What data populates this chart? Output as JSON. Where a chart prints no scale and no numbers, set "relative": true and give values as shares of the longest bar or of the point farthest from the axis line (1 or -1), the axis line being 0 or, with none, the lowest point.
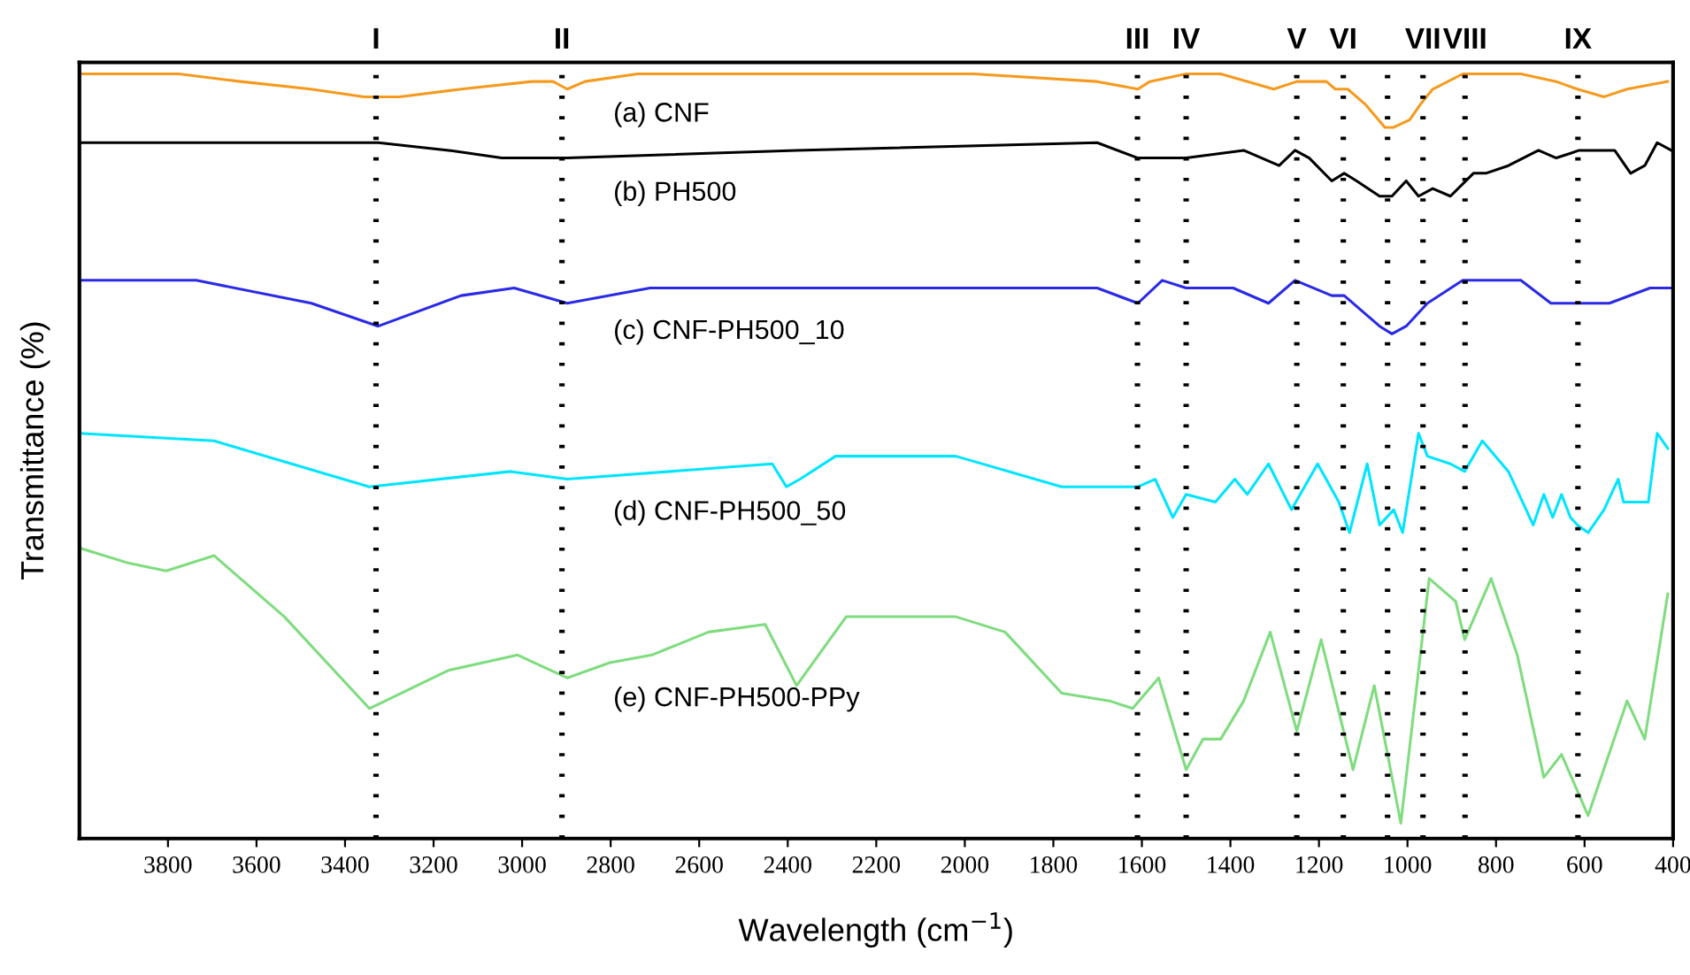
{
  "chart_data": {
    "type": "line",
    "relative": true,
    "xlabel": "Wavelength (cm$^{−1}$)",
    "ylabel": "Transmittance (%)",
    "xlim": [
      4000,
      400
    ],
    "xticks": [
      3800,
      3600,
      3400,
      3200,
      3000,
      2800,
      2600,
      2400,
      2200,
      2000,
      1800,
      1600,
      1400,
      1200,
      1000,
      800,
      600,
      400
    ],
    "grid": false,
    "legend": false,
    "marker": "none",
    "line_style": "solid",
    "series": [
      {
        "name": "(a) CNF",
        "color": "#f59a1e",
        "x": [
          4000,
          3776,
          3636,
          3477,
          3357,
          3277,
          3138,
          2978,
          2930,
          2898,
          2858,
          2739,
          2380,
          1981,
          1701,
          1609,
          1582,
          1500,
          1422,
          1302,
          1250,
          1183,
          1163,
          1135,
          1095,
          1051,
          1031,
          995,
          971,
          943,
          875,
          744,
          664,
          616,
          556,
          504,
          412
        ],
        "values": [
          1.0,
          1.0,
          0.99,
          0.98,
          0.97,
          0.97,
          0.98,
          0.99,
          0.99,
          0.98,
          0.99,
          1.0,
          1.0,
          1.0,
          0.99,
          0.98,
          0.99,
          1.0,
          1.0,
          0.98,
          0.99,
          0.99,
          0.98,
          0.98,
          0.96,
          0.93,
          0.93,
          0.94,
          0.96,
          0.98,
          1.0,
          1.0,
          0.99,
          0.98,
          0.97,
          0.98,
          0.99
        ]
      },
      {
        "name": "(b) PH500",
        "color": "#000000",
        "x": [
          4000,
          3325,
          3166,
          3046,
          2898,
          2380,
          1701,
          1609,
          1562,
          1534,
          1500,
          1370,
          1290,
          1254,
          1222,
          1171,
          1143,
          1115,
          1063,
          1035,
          1003,
          975,
          943,
          903,
          851,
          823,
          772,
          704,
          664,
          612,
          532,
          496,
          464,
          436,
          404
        ],
        "values": [
          0.91,
          0.91,
          0.9,
          0.89,
          0.89,
          0.9,
          0.91,
          0.89,
          0.89,
          0.89,
          0.89,
          0.9,
          0.88,
          0.9,
          0.89,
          0.86,
          0.87,
          0.86,
          0.84,
          0.84,
          0.86,
          0.84,
          0.85,
          0.84,
          0.87,
          0.87,
          0.88,
          0.9,
          0.89,
          0.9,
          0.9,
          0.87,
          0.88,
          0.91,
          0.9
        ]
      },
      {
        "name": "(c) CNF-PH500_10",
        "color": "#2a2ae6",
        "x": [
          4000,
          3736,
          3476,
          3325,
          3138,
          3018,
          2898,
          2711,
          2380,
          1701,
          1609,
          1554,
          1500,
          1394,
          1314,
          1254,
          1171,
          1143,
          1103,
          1063,
          1035,
          1003,
          955,
          875,
          744,
          676,
          636,
          596,
          544,
          452,
          404
        ],
        "values": [
          0.73,
          0.73,
          0.7,
          0.67,
          0.71,
          0.72,
          0.7,
          0.72,
          0.72,
          0.72,
          0.7,
          0.73,
          0.72,
          0.72,
          0.7,
          0.73,
          0.71,
          0.71,
          0.69,
          0.67,
          0.66,
          0.67,
          0.7,
          0.73,
          0.73,
          0.7,
          0.7,
          0.7,
          0.7,
          0.72,
          0.72
        ]
      },
      {
        "name": "(d) CNF-PH500_50",
        "color": "#00e5ff",
        "x": [
          4000,
          3696,
          3345,
          3026,
          2898,
          2435,
          2403,
          2372,
          2292,
          2020,
          1781,
          1673,
          1609,
          1570,
          1530,
          1500,
          1434,
          1390,
          1362,
          1314,
          1262,
          1203,
          1155,
          1131,
          1091,
          1063,
          1031,
          1011,
          975,
          955,
          903,
          871,
          831,
          772,
          716,
          692,
          672,
          652,
          632,
          616,
          592,
          556,
          524,
          512,
          456,
          436,
          412
        ],
        "values": [
          0.53,
          0.52,
          0.46,
          0.48,
          0.47,
          0.49,
          0.46,
          0.47,
          0.5,
          0.5,
          0.46,
          0.46,
          0.46,
          0.47,
          0.42,
          0.45,
          0.44,
          0.47,
          0.45,
          0.49,
          0.43,
          0.49,
          0.44,
          0.4,
          0.49,
          0.41,
          0.43,
          0.4,
          0.53,
          0.5,
          0.49,
          0.48,
          0.52,
          0.48,
          0.41,
          0.45,
          0.42,
          0.45,
          0.42,
          0.41,
          0.4,
          0.43,
          0.47,
          0.44,
          0.44,
          0.53,
          0.51
        ]
      },
      {
        "name": "(e) CNF-PH500-PPy",
        "color": "#7fdc7f",
        "x": [
          4000,
          3888,
          3804,
          3696,
          3537,
          3345,
          3166,
          3010,
          2898,
          2802,
          2707,
          2579,
          2451,
          2380,
          2268,
          2180,
          2020,
          1909,
          1781,
          1673,
          1621,
          1562,
          1500,
          1462,
          1422,
          1370,
          1310,
          1250,
          1195,
          1123,
          1075,
          1015,
          951,
          891,
          871,
          811,
          752,
          692,
          652,
          592,
          504,
          464,
          412
        ],
        "values": [
          0.38,
          0.36,
          0.35,
          0.37,
          0.29,
          0.17,
          0.22,
          0.24,
          0.21,
          0.23,
          0.24,
          0.27,
          0.28,
          0.2,
          0.29,
          0.29,
          0.29,
          0.27,
          0.19,
          0.18,
          0.17,
          0.21,
          0.09,
          0.13,
          0.13,
          0.18,
          0.27,
          0.14,
          0.26,
          0.09,
          0.2,
          0.02,
          0.34,
          0.31,
          0.26,
          0.34,
          0.24,
          0.08,
          0.11,
          0.03,
          0.18,
          0.13,
          0.32
        ]
      }
    ],
    "ref_lines": [
      {
        "axis": "x",
        "value": 3330,
        "label": "I",
        "color": "#000000",
        "line_style": "dotted"
      },
      {
        "axis": "x",
        "value": 2910,
        "label": "II",
        "color": "#000000",
        "line_style": "dotted"
      },
      {
        "axis": "x",
        "value": 1610,
        "label": "III",
        "color": "#000000",
        "line_style": "dotted"
      },
      {
        "axis": "x",
        "value": 1500,
        "label": "IV",
        "color": "#000000",
        "line_style": "dotted"
      },
      {
        "axis": "x",
        "value": 1250,
        "label": "V",
        "color": "#000000",
        "line_style": "dotted"
      },
      {
        "axis": "x",
        "value": 1145,
        "label": "VI",
        "color": "#000000",
        "line_style": "dotted"
      },
      {
        "axis": "x",
        "value": 1045,
        "label": null,
        "color": "#000000",
        "line_style": "dotted"
      },
      {
        "axis": "x",
        "value": 965,
        "label": "VII",
        "color": "#000000",
        "line_style": "dotted"
      },
      {
        "axis": "x",
        "value": 870,
        "label": "VIII",
        "color": "#000000",
        "line_style": "dotted"
      },
      {
        "axis": "x",
        "value": 615,
        "label": "IX",
        "color": "#000000",
        "line_style": "dotted"
      }
    ]
  }
}
